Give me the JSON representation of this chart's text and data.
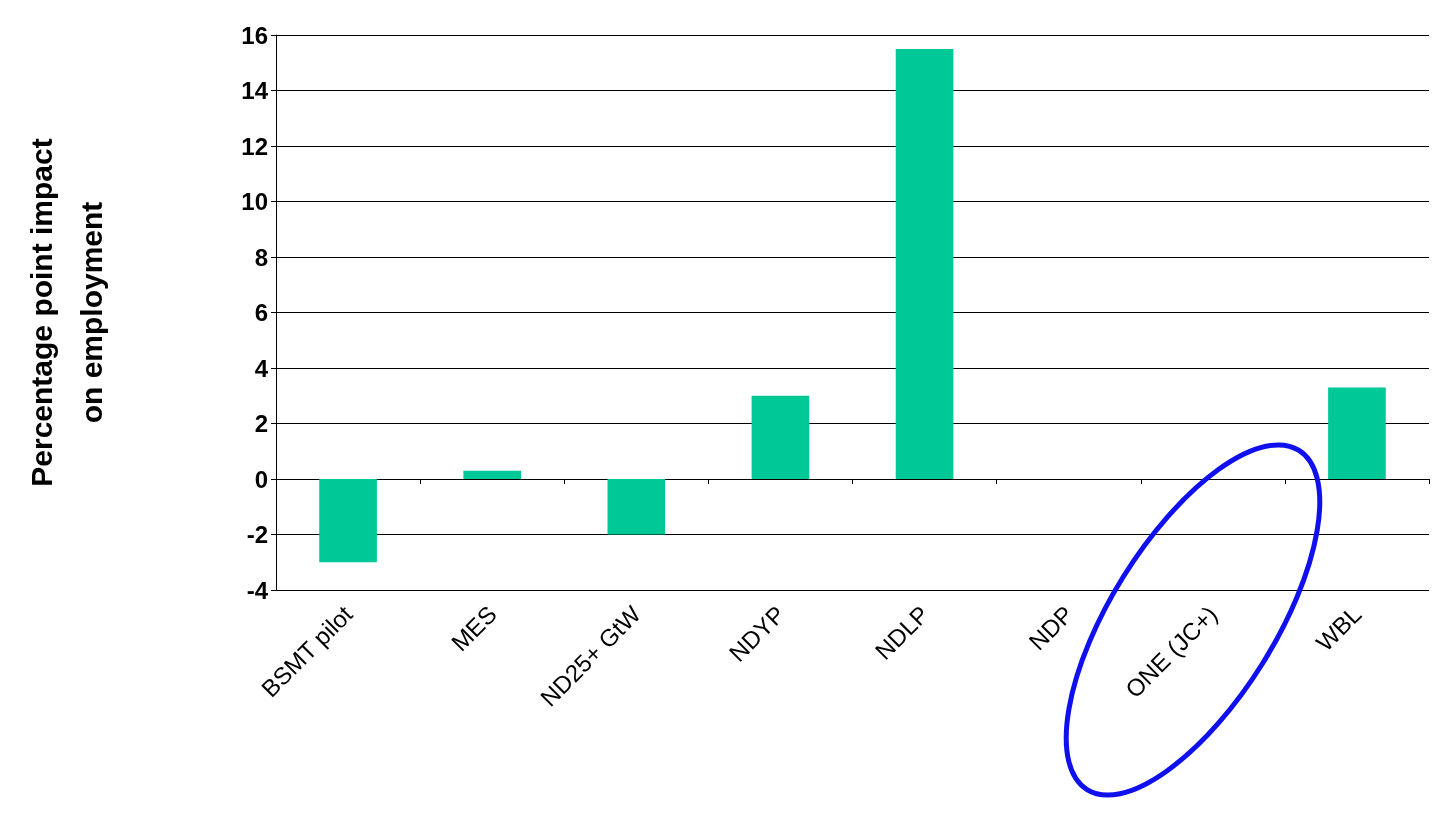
{
  "chart_data": {
    "type": "bar",
    "ylabel": "Percentage point impact\non employment",
    "categories": [
      "BSMT pilot",
      "MES",
      "ND25+ GtW",
      "NDYP",
      "NDLP",
      "NDP",
      "ONE (JC+)",
      "WBL"
    ],
    "values": [
      -3.0,
      0.3,
      -2.0,
      3.0,
      15.5,
      0,
      0,
      3.3
    ],
    "color": "#00c896",
    "ylim": [
      -4,
      16
    ],
    "yticks": [
      -4,
      -2,
      0,
      2,
      4,
      6,
      8,
      10,
      12,
      14,
      16
    ],
    "grid": "y"
  }
}
